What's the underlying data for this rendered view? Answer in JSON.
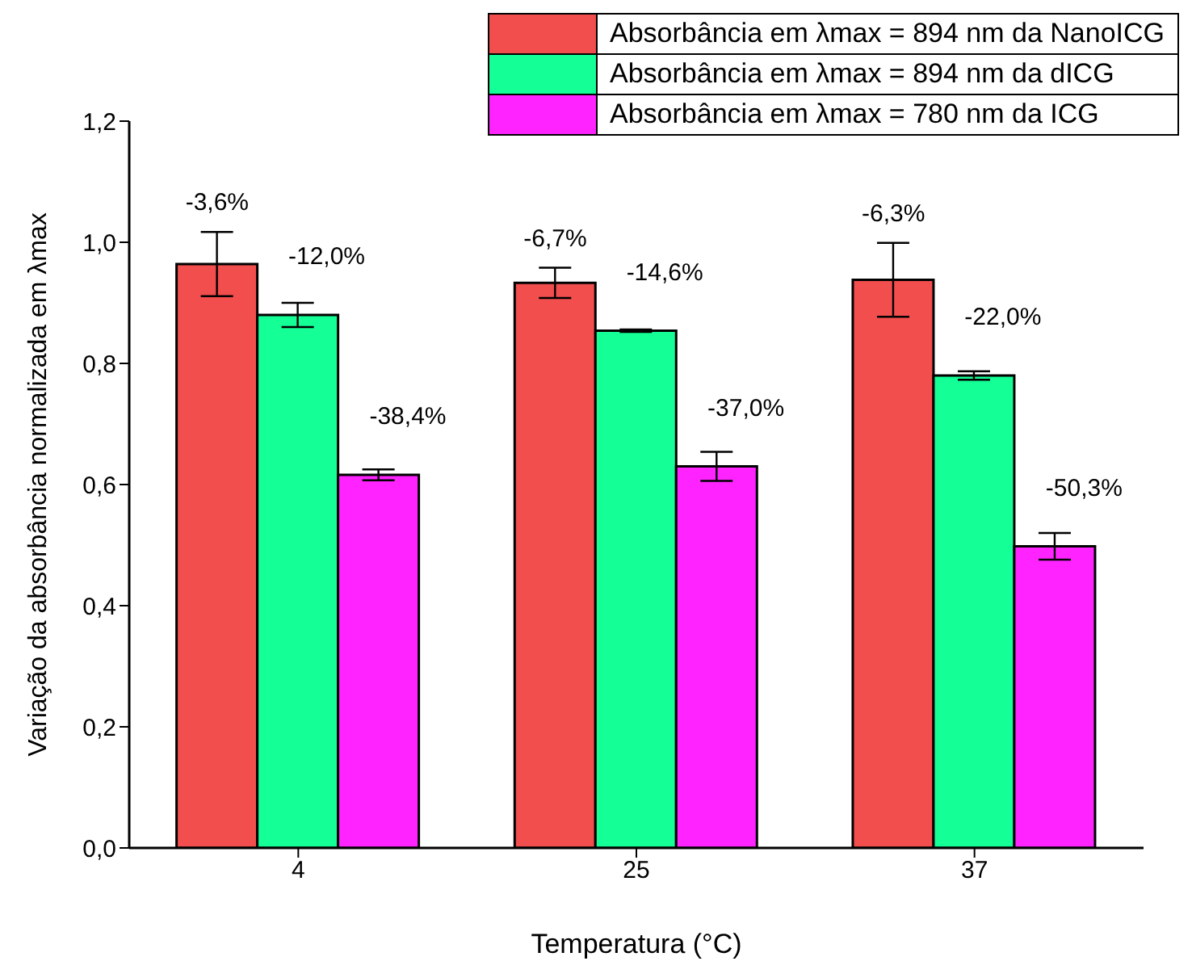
{
  "chart_data": {
    "type": "bar",
    "xlabel": "Temperatura (°C)",
    "ylabel": "Variação da absorbância normalizada em  λmax",
    "categories": [
      "4",
      "25",
      "37"
    ],
    "series": [
      {
        "name": "Absorbância em λmax = 894 nm da NanoICG",
        "color": "#f24e4e",
        "values": [
          0.964,
          0.933,
          0.938
        ],
        "errors": [
          0.053,
          0.025,
          0.061
        ]
      },
      {
        "name": "Absorbância em λmax = 894 nm da dICG",
        "color": "#14ff96",
        "values": [
          0.88,
          0.854,
          0.78
        ],
        "errors": [
          0.02,
          0.002,
          0.007
        ]
      },
      {
        "name": "Absorbância em λmax = 780 nm da ICG",
        "color": "#ff24ff",
        "values": [
          0.616,
          0.63,
          0.498
        ],
        "errors": [
          0.009,
          0.024,
          0.022
        ]
      }
    ],
    "annotations": [
      "-3,6%",
      "-12,0%",
      "-38,4%",
      "-6,7%",
      "-14,6%",
      "-37,0%",
      "-6,3%",
      "-22,0%",
      "-50,3%"
    ],
    "ylim": [
      0,
      1.2
    ],
    "yticks": [
      {
        "value": 0,
        "label": "0,0"
      },
      {
        "value": 0.2,
        "label": "0,2"
      },
      {
        "value": 0.4,
        "label": "0,4"
      },
      {
        "value": 0.6,
        "label": "0,6"
      },
      {
        "value": 0.8,
        "label": "0,8"
      },
      {
        "value": 1,
        "label": "1,0"
      },
      {
        "value": 1.2,
        "label": "1,2"
      }
    ],
    "grid": false,
    "legend": "top right"
  }
}
